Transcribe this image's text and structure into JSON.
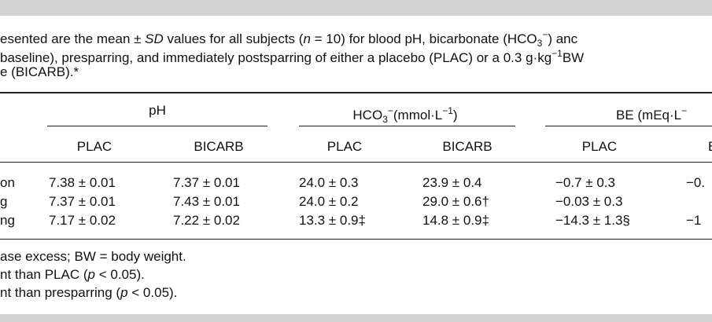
{
  "caption": {
    "line1": [
      "esented are the mean ± ",
      "SD",
      " values for all subjects (",
      "n",
      " = 10) for blood pH, bicarbonate (HCO",
      "3",
      "−",
      ") anc"
    ],
    "line2": [
      "baseline), presparring, and immediately postsparring of either a placebo (PLAC) or a 0.3 g·kg",
      "−1",
      "BW"
    ],
    "line3": [
      "e (BICARB).*"
    ]
  },
  "table": {
    "groups": {
      "ph": [
        "pH"
      ],
      "hco3": [
        "HCO",
        "3",
        "−",
        "(mmol·L",
        "−1",
        ")"
      ],
      "be": [
        "BE (mEq·L",
        "−"
      ]
    },
    "subheaders": [
      "PLAC",
      "BICARB",
      "PLAC",
      "BICARB",
      "PLAC",
      "B"
    ],
    "rows": [
      [
        "on",
        "7.38 ± 0.01",
        "7.37 ± 0.01",
        "24.0 ± 0.3",
        "23.9 ± 0.4",
        "−0.7 ± 0.3",
        "−0."
      ],
      [
        "g",
        "7.37 ± 0.01",
        "7.43 ± 0.01",
        "24.0 ± 0.2",
        "29.0 ± 0.6†",
        "−0.03 ± 0.3",
        null
      ],
      [
        "ng",
        "7.17 ± 0.02",
        "7.22 ± 0.02",
        "13.3 ± 0.9‡",
        "14.8 ± 0.9‡",
        "−14.3 ± 1.3§",
        "−1"
      ]
    ]
  },
  "footnotes": [
    [
      "ase excess; BW = body weight."
    ],
    [
      "nt than PLAC (",
      "p",
      " < 0.05)."
    ],
    [
      "nt than presparring (",
      "p",
      " < 0.05)."
    ]
  ]
}
